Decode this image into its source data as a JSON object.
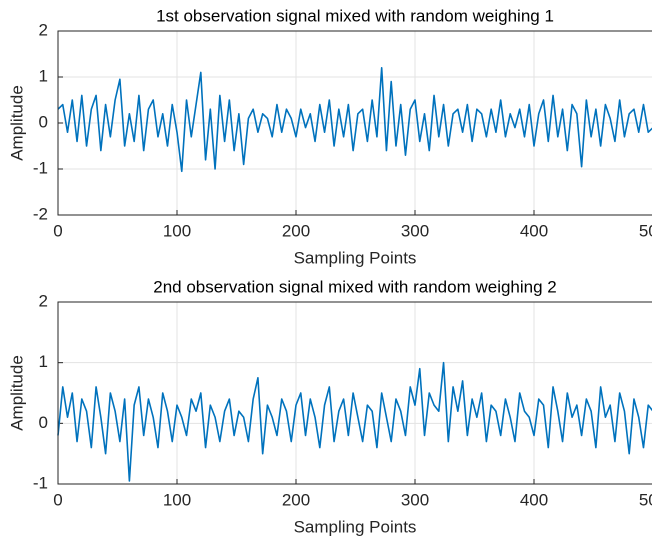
{
  "chart_data": [
    {
      "type": "line",
      "title": "1st observation signal mixed with random weighing 1",
      "xlabel": "Sampling Points",
      "ylabel": "Amplitude",
      "x": [
        0,
        4,
        8,
        12,
        16,
        20,
        24,
        28,
        32,
        36,
        40,
        44,
        48,
        52,
        56,
        60,
        64,
        68,
        72,
        76,
        80,
        84,
        88,
        92,
        96,
        100,
        104,
        108,
        112,
        116,
        120,
        124,
        128,
        132,
        136,
        140,
        144,
        148,
        152,
        156,
        160,
        164,
        168,
        172,
        176,
        180,
        184,
        188,
        192,
        196,
        200,
        204,
        208,
        212,
        216,
        220,
        224,
        228,
        232,
        236,
        240,
        244,
        248,
        252,
        256,
        260,
        264,
        268,
        272,
        276,
        280,
        284,
        288,
        292,
        296,
        300,
        304,
        308,
        312,
        316,
        320,
        324,
        328,
        332,
        336,
        340,
        344,
        348,
        352,
        356,
        360,
        364,
        368,
        372,
        376,
        380,
        384,
        388,
        392,
        396,
        400,
        404,
        408,
        412,
        416,
        420,
        424,
        428,
        432,
        436,
        440,
        444,
        448,
        452,
        456,
        460,
        464,
        468,
        472,
        476,
        480,
        484,
        488,
        492,
        496,
        500
      ],
      "series": [
        {
          "color": "#0072bd",
          "values": [
            0.3,
            0.4,
            -0.2,
            0.5,
            -0.4,
            0.6,
            -0.5,
            0.3,
            0.6,
            -0.6,
            0.4,
            -0.3,
            0.5,
            0.95,
            -0.5,
            0.2,
            -0.4,
            0.6,
            -0.6,
            0.3,
            0.5,
            -0.3,
            0.2,
            -0.5,
            0.4,
            -0.2,
            -1.05,
            0.5,
            -0.3,
            0.4,
            1.1,
            -0.8,
            0.3,
            -1.0,
            0.6,
            -0.4,
            0.5,
            -0.6,
            0.2,
            -0.9,
            0.1,
            0.3,
            -0.2,
            0.2,
            0.1,
            -0.3,
            0.4,
            -0.2,
            0.3,
            0.1,
            -0.3,
            0.3,
            -0.1,
            0.2,
            -0.4,
            0.4,
            -0.2,
            0.5,
            -0.5,
            0.3,
            -0.3,
            0.4,
            -0.6,
            0.2,
            0.3,
            -0.4,
            0.5,
            -0.3,
            1.2,
            -0.6,
            0.9,
            -0.5,
            0.4,
            -0.7,
            0.3,
            0.5,
            -0.4,
            0.2,
            -0.6,
            0.6,
            -0.3,
            0.4,
            -0.5,
            0.2,
            0.3,
            -0.2,
            0.4,
            -0.4,
            0.3,
            0.2,
            -0.3,
            0.3,
            -0.2,
            0.5,
            -0.3,
            0.2,
            -0.1,
            0.3,
            -0.3,
            0.4,
            -0.5,
            0.2,
            0.5,
            -0.4,
            0.6,
            -0.3,
            0.3,
            -0.6,
            0.4,
            0.2,
            -0.95,
            0.5,
            -0.3,
            0.3,
            -0.5,
            0.4,
            0.1,
            -0.4,
            0.5,
            -0.3,
            0.2,
            0.3,
            -0.2,
            0.4,
            -0.2,
            -0.1
          ]
        }
      ],
      "xlim": [
        0,
        500
      ],
      "ylim": [
        -2,
        2
      ],
      "xticks": [
        0,
        100,
        200,
        300,
        400,
        500
      ],
      "yticks": [
        -2,
        -1,
        0,
        1,
        2
      ],
      "grid": true
    },
    {
      "type": "line",
      "title": "2nd observation signal mixed with random weighing 2",
      "xlabel": "Sampling Points",
      "ylabel": "Amplitude",
      "x": [
        0,
        4,
        8,
        12,
        16,
        20,
        24,
        28,
        32,
        36,
        40,
        44,
        48,
        52,
        56,
        60,
        64,
        68,
        72,
        76,
        80,
        84,
        88,
        92,
        96,
        100,
        104,
        108,
        112,
        116,
        120,
        124,
        128,
        132,
        136,
        140,
        144,
        148,
        152,
        156,
        160,
        164,
        168,
        172,
        176,
        180,
        184,
        188,
        192,
        196,
        200,
        204,
        208,
        212,
        216,
        220,
        224,
        228,
        232,
        236,
        240,
        244,
        248,
        252,
        256,
        260,
        264,
        268,
        272,
        276,
        280,
        284,
        288,
        292,
        296,
        300,
        304,
        308,
        312,
        316,
        320,
        324,
        328,
        332,
        336,
        340,
        344,
        348,
        352,
        356,
        360,
        364,
        368,
        372,
        376,
        380,
        384,
        388,
        392,
        396,
        400,
        404,
        408,
        412,
        416,
        420,
        424,
        428,
        432,
        436,
        440,
        444,
        448,
        452,
        456,
        460,
        464,
        468,
        472,
        476,
        480,
        484,
        488,
        492,
        496,
        500
      ],
      "series": [
        {
          "color": "#0072bd",
          "values": [
            -0.2,
            0.6,
            0.1,
            0.5,
            -0.3,
            0.4,
            0.2,
            -0.4,
            0.6,
            0.1,
            -0.5,
            0.5,
            0.2,
            -0.3,
            0.4,
            -0.95,
            0.3,
            0.6,
            -0.2,
            0.4,
            0.1,
            -0.4,
            0.5,
            0.2,
            -0.3,
            0.3,
            0.1,
            -0.2,
            0.4,
            0.2,
            0.5,
            -0.4,
            0.3,
            0.1,
            -0.3,
            0.2,
            0.4,
            -0.2,
            0.2,
            0.1,
            -0.3,
            0.4,
            0.75,
            -0.5,
            0.3,
            0.1,
            -0.2,
            0.4,
            0.2,
            -0.3,
            0.3,
            0.5,
            -0.2,
            0.4,
            0.1,
            -0.4,
            0.3,
            0.6,
            -0.3,
            0.2,
            0.4,
            -0.2,
            0.5,
            0.1,
            -0.3,
            0.3,
            0.2,
            -0.4,
            0.5,
            0.1,
            -0.3,
            0.4,
            0.2,
            -0.2,
            0.6,
            0.3,
            0.9,
            -0.2,
            0.5,
            0.3,
            0.2,
            1.0,
            -0.3,
            0.6,
            0.2,
            0.7,
            -0.2,
            0.4,
            0.1,
            0.5,
            -0.3,
            0.3,
            0.2,
            -0.2,
            0.4,
            0.1,
            -0.3,
            0.5,
            0.2,
            0.1,
            -0.2,
            0.4,
            0.3,
            -0.4,
            0.6,
            0.2,
            -0.3,
            0.5,
            0.1,
            0.3,
            -0.2,
            0.4,
            0.2,
            -0.4,
            0.6,
            0.1,
            0.3,
            -0.3,
            0.5,
            0.2,
            -0.5,
            0.4,
            0.1,
            -0.4,
            0.3,
            0.2
          ]
        }
      ],
      "xlim": [
        0,
        500
      ],
      "ylim": [
        -1,
        2
      ],
      "xticks": [
        0,
        100,
        200,
        300,
        400,
        500
      ],
      "yticks": [
        -1,
        0,
        1,
        2
      ],
      "grid": true
    }
  ]
}
